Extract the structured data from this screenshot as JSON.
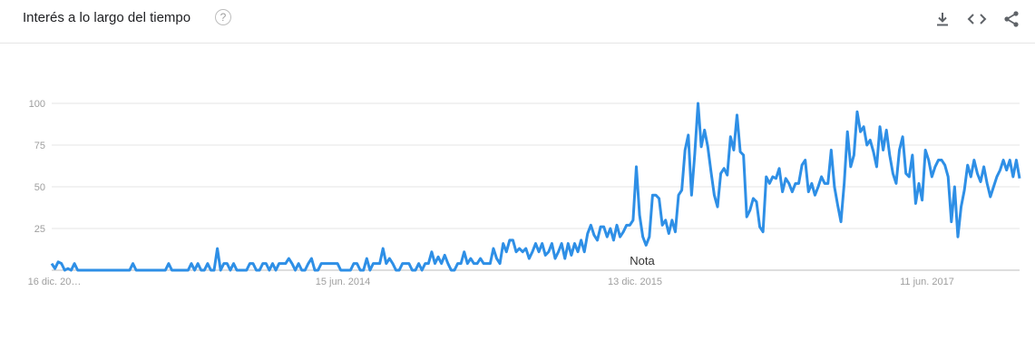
{
  "header": {
    "title": "Interés a lo largo del tiempo",
    "help_symbol": "?"
  },
  "actions": {
    "download_icon": "download-icon",
    "embed_icon": "embed-code-icon",
    "share_icon": "share-icon"
  },
  "chart_data": {
    "type": "line",
    "title": "Interés a lo largo del tiempo",
    "xlabel": "",
    "ylabel": "",
    "ylim": [
      0,
      100
    ],
    "y_ticks": [
      25,
      50,
      75,
      100
    ],
    "x_tick_labels": [
      "16 dic. 20…",
      "15 jun. 2014",
      "13 dic. 2015",
      "11 jun. 2017"
    ],
    "annotation": "Nota",
    "grid": true,
    "series_color": "#2e8fe6",
    "series": [
      {
        "values": [
          4,
          1,
          5,
          4,
          0,
          1,
          0,
          4,
          0,
          0,
          0,
          0,
          0,
          0,
          0,
          0,
          0,
          0,
          0,
          0,
          0,
          0,
          0,
          0,
          0,
          4,
          0,
          0,
          0,
          0,
          0,
          0,
          0,
          0,
          0,
          0,
          4,
          0,
          0,
          0,
          0,
          0,
          0,
          4,
          0,
          4,
          0,
          0,
          4,
          0,
          0,
          13,
          0,
          4,
          4,
          0,
          4,
          0,
          0,
          0,
          0,
          4,
          4,
          0,
          0,
          4,
          4,
          0,
          4,
          0,
          4,
          4,
          4,
          7,
          4,
          0,
          4,
          0,
          0,
          4,
          7,
          0,
          0,
          4,
          4,
          4,
          4,
          4,
          4,
          0,
          0,
          0,
          0,
          4,
          4,
          0,
          0,
          7,
          0,
          4,
          4,
          4,
          13,
          4,
          7,
          4,
          0,
          0,
          4,
          4,
          4,
          0,
          0,
          4,
          0,
          4,
          4,
          11,
          4,
          8,
          4,
          9,
          4,
          0,
          0,
          4,
          4,
          11,
          4,
          7,
          4,
          4,
          7,
          4,
          4,
          4,
          13,
          7,
          4,
          16,
          11,
          18,
          18,
          11,
          13,
          11,
          13,
          7,
          11,
          16,
          11,
          16,
          9,
          11,
          16,
          7,
          11,
          16,
          7,
          16,
          9,
          16,
          11,
          18,
          11,
          22,
          27,
          21,
          18,
          26,
          26,
          20,
          25,
          18,
          27,
          20,
          23,
          27,
          27,
          30,
          62,
          33,
          20,
          15,
          20,
          45,
          45,
          43,
          27,
          30,
          22,
          30,
          23,
          45,
          48,
          72,
          81,
          45,
          70,
          100,
          74,
          84,
          74,
          59,
          45,
          38,
          58,
          61,
          57,
          80,
          72,
          93,
          71,
          69,
          32,
          36,
          43,
          41,
          26,
          23,
          56,
          52,
          56,
          55,
          61,
          47,
          55,
          52,
          47,
          52,
          52,
          63,
          66,
          47,
          52,
          45,
          50,
          56,
          52,
          52,
          72,
          50,
          39,
          29,
          52,
          83,
          62,
          69,
          95,
          83,
          86,
          75,
          78,
          71,
          62,
          86,
          72,
          84,
          69,
          58,
          52,
          72,
          80,
          58,
          56,
          69,
          40,
          52,
          42,
          72,
          66,
          56,
          62,
          66,
          66,
          63,
          56,
          29,
          50,
          20,
          38,
          48,
          63,
          56,
          66,
          58,
          53,
          62,
          52,
          44,
          50,
          56,
          60,
          66,
          60,
          66,
          56,
          66,
          55
        ]
      }
    ]
  }
}
